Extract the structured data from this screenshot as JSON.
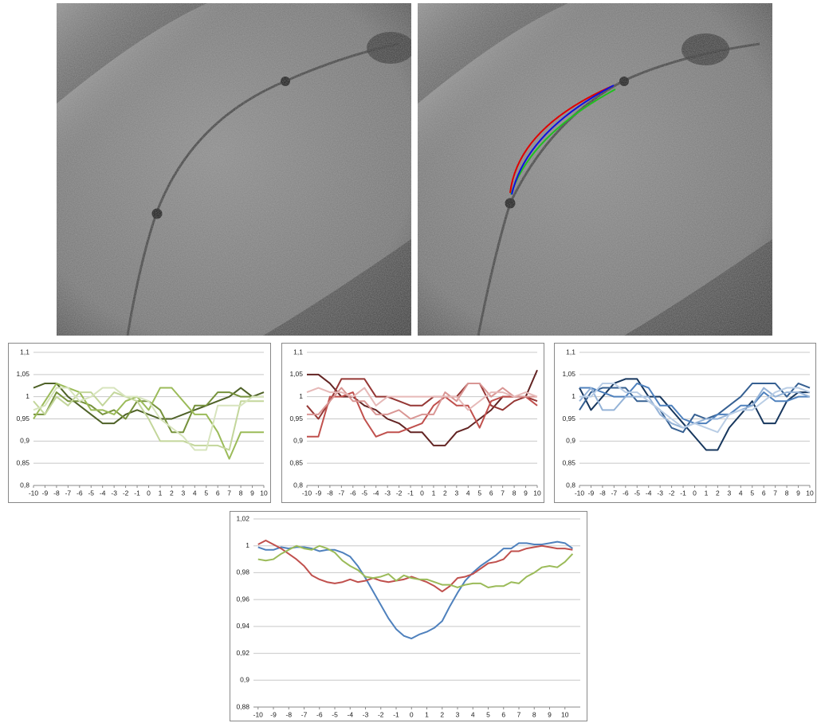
{
  "chart_data": [
    {
      "type": "line",
      "x": [
        -10,
        -9,
        -8,
        -7,
        -6,
        -5,
        -4,
        -3,
        -2,
        -1,
        0,
        1,
        2,
        3,
        4,
        5,
        6,
        7,
        8,
        9,
        10
      ],
      "xlim": [
        -10,
        10
      ],
      "xticks": [
        -10,
        -9,
        -8,
        -7,
        -6,
        -5,
        -4,
        -3,
        -2,
        -1,
        0,
        1,
        2,
        3,
        4,
        5,
        6,
        7,
        8,
        9,
        10
      ],
      "ylim": [
        0.8,
        1.1
      ],
      "yticks": [
        {
          "value": 0.8,
          "label": "0,8"
        },
        {
          "value": 0.85,
          "label": "0,85"
        },
        {
          "value": 0.9,
          "label": "0,9"
        },
        {
          "value": 0.95,
          "label": "0,95"
        },
        1,
        {
          "value": 1.05,
          "label": "1,05"
        },
        {
          "value": 1.1,
          "label": "1,1"
        }
      ],
      "grid": true,
      "series": [
        {
          "color": "#4f6228",
          "values": [
            1.02,
            1.03,
            1.03,
            1.0,
            0.98,
            0.96,
            0.94,
            0.94,
            0.96,
            0.97,
            0.96,
            0.95,
            0.95,
            0.96,
            0.97,
            0.98,
            0.99,
            1.0,
            1.02,
            1.0,
            1.01
          ]
        },
        {
          "color": "#76923c",
          "values": [
            0.96,
            0.96,
            1.01,
            0.99,
            0.99,
            0.98,
            0.96,
            0.97,
            0.95,
            0.99,
            0.99,
            0.97,
            0.92,
            0.92,
            0.98,
            0.98,
            1.01,
            1.01,
            1.0,
            1.0,
            1.0
          ]
        },
        {
          "color": "#9bbb59",
          "values": [
            0.95,
            0.99,
            1.03,
            1.02,
            1.01,
            0.97,
            0.97,
            0.96,
            0.99,
            1.0,
            0.97,
            1.02,
            1.02,
            0.99,
            0.96,
            0.96,
            0.92,
            0.86,
            0.92,
            0.92,
            0.92
          ]
        },
        {
          "color": "#c3d69b",
          "values": [
            0.99,
            0.96,
            1.0,
            0.98,
            1.01,
            1.01,
            0.98,
            1.01,
            1.0,
            0.99,
            0.95,
            0.9,
            0.9,
            0.9,
            0.89,
            0.89,
            0.89,
            0.88,
            0.99,
            0.99,
            0.99
          ]
        },
        {
          "color": "#d7e4bd",
          "values": [
            0.97,
            0.98,
            1.02,
            1.02,
            0.99,
            1.0,
            1.02,
            1.02,
            1.0,
            1.0,
            0.99,
            0.95,
            0.93,
            0.91,
            0.88,
            0.88,
            0.98,
            0.98,
            0.98,
            1.0,
            1.0
          ]
        }
      ]
    },
    {
      "type": "line",
      "x": [
        -10,
        -9,
        -8,
        -7,
        -6,
        -5,
        -4,
        -3,
        -2,
        -1,
        0,
        1,
        2,
        3,
        4,
        5,
        6,
        7,
        8,
        9,
        10
      ],
      "xlim": [
        -10,
        10
      ],
      "xticks": [
        -10,
        -9,
        -8,
        -7,
        -6,
        -5,
        -4,
        -3,
        -2,
        -1,
        0,
        1,
        2,
        3,
        4,
        5,
        6,
        7,
        8,
        9,
        10
      ],
      "ylim": [
        0.8,
        1.1
      ],
      "yticks": [
        {
          "value": 0.8,
          "label": "0,8"
        },
        {
          "value": 0.85,
          "label": "0,85"
        },
        {
          "value": 0.9,
          "label": "0,9"
        },
        {
          "value": 0.95,
          "label": "0,95"
        },
        1,
        {
          "value": 1.05,
          "label": "1,05"
        },
        {
          "value": 1.1,
          "label": "1,1"
        }
      ],
      "grid": true,
      "series": [
        {
          "color": "#632423",
          "values": [
            1.05,
            1.05,
            1.03,
            1.0,
            1.0,
            0.98,
            0.97,
            0.95,
            0.94,
            0.92,
            0.92,
            0.89,
            0.89,
            0.92,
            0.93,
            0.95,
            0.97,
            1.0,
            1.0,
            1.0,
            1.06
          ]
        },
        {
          "color": "#953735",
          "values": [
            0.98,
            0.95,
            0.99,
            1.04,
            1.04,
            1.04,
            1.0,
            1.0,
            0.99,
            0.98,
            0.98,
            1.0,
            1.0,
            1.0,
            1.03,
            1.03,
            0.98,
            0.97,
            0.99,
            1.0,
            0.99
          ]
        },
        {
          "color": "#c0504d",
          "values": [
            0.91,
            0.91,
            1.0,
            1.0,
            1.01,
            0.95,
            0.91,
            0.92,
            0.92,
            0.93,
            0.94,
            0.98,
            1.0,
            0.98,
            0.98,
            0.93,
            0.99,
            1.0,
            1.0,
            1.0,
            0.98
          ]
        },
        {
          "color": "#d99694",
          "values": [
            0.96,
            0.96,
            0.99,
            1.02,
            0.99,
            0.99,
            0.96,
            0.96,
            0.97,
            0.95,
            0.96,
            0.96,
            1.01,
            0.99,
            1.03,
            1.03,
            1.0,
            1.02,
            1.0,
            1.0,
            1.0
          ]
        },
        {
          "color": "#e6b9b8",
          "values": [
            1.01,
            1.02,
            1.01,
            1.01,
            1.0,
            1.02,
            0.98,
            1.0,
            1.0,
            1.0,
            1.0,
            1.0,
            1.0,
            1.0,
            0.97,
            0.99,
            1.01,
            1.01,
            1.0,
            1.01,
            1.0
          ]
        }
      ]
    },
    {
      "type": "line",
      "x": [
        -10,
        -9,
        -8,
        -7,
        -6,
        -5,
        -4,
        -3,
        -2,
        -1,
        0,
        1,
        2,
        3,
        4,
        5,
        6,
        7,
        8,
        9,
        10
      ],
      "xlim": [
        -10,
        10
      ],
      "xticks": [
        -10,
        -9,
        -8,
        -7,
        -6,
        -5,
        -4,
        -3,
        -2,
        -1,
        0,
        1,
        2,
        3,
        4,
        5,
        6,
        7,
        8,
        9,
        10
      ],
      "ylim": [
        0.8,
        1.1
      ],
      "yticks": [
        {
          "value": 0.8,
          "label": "0,8"
        },
        {
          "value": 0.85,
          "label": "0,85"
        },
        {
          "value": 0.9,
          "label": "0,9"
        },
        {
          "value": 0.95,
          "label": "0,95"
        },
        1,
        {
          "value": 1.05,
          "label": "1,05"
        },
        {
          "value": 1.1,
          "label": "1,1"
        }
      ],
      "grid": true,
      "series": [
        {
          "color": "#17375e",
          "values": [
            1.02,
            0.97,
            1.0,
            1.03,
            1.04,
            1.04,
            1.0,
            1.0,
            0.97,
            0.94,
            0.91,
            0.88,
            0.88,
            0.93,
            0.96,
            0.99,
            0.94,
            0.94,
            0.99,
            1.01,
            1.01
          ]
        },
        {
          "color": "#366092",
          "values": [
            0.97,
            1.01,
            1.02,
            1.02,
            1.02,
            0.99,
            0.99,
            0.97,
            0.93,
            0.92,
            0.96,
            0.95,
            0.96,
            0.98,
            1.0,
            1.03,
            1.03,
            1.03,
            1.0,
            1.03,
            1.02
          ]
        },
        {
          "color": "#4f81bd",
          "values": [
            1.02,
            1.02,
            1.01,
            1.0,
            1.0,
            1.03,
            1.02,
            0.98,
            0.98,
            0.95,
            0.94,
            0.94,
            0.96,
            0.96,
            0.98,
            0.98,
            1.01,
            0.99,
            0.99,
            1.0,
            1.0
          ]
        },
        {
          "color": "#95b3d7",
          "values": [
            0.99,
            1.02,
            0.97,
            0.97,
            1.0,
            1.0,
            1.0,
            0.96,
            0.94,
            0.93,
            0.94,
            0.95,
            0.95,
            0.96,
            0.97,
            0.98,
            1.02,
            1.0,
            1.01,
            1.01,
            1.0
          ]
        },
        {
          "color": "#b9cde5",
          "values": [
            1.0,
            1.0,
            1.03,
            1.03,
            1.01,
            1.01,
            0.99,
            0.97,
            0.95,
            0.93,
            0.94,
            0.93,
            0.92,
            0.96,
            0.97,
            0.97,
            0.99,
            1.01,
            1.02,
            1.02,
            1.01
          ]
        }
      ]
    },
    {
      "type": "line",
      "x": [
        -10,
        -9.5,
        -9,
        -8.5,
        -8,
        -7.5,
        -7,
        -6.5,
        -6,
        -5.5,
        -5,
        -4.5,
        -4,
        -3.5,
        -3,
        -2.5,
        -2,
        -1.5,
        -1,
        -0.5,
        0,
        0.5,
        1,
        1.5,
        2,
        2.5,
        3,
        3.5,
        4,
        4.5,
        5,
        5.5,
        6,
        6.5,
        7,
        7.5,
        8,
        8.5,
        9,
        9.5,
        10,
        10.5
      ],
      "xlim": [
        -10.3,
        11
      ],
      "xticks": [
        -10,
        -9,
        -8,
        -7,
        -6,
        -5,
        -4,
        -3,
        -2,
        -1,
        0,
        1,
        2,
        3,
        4,
        5,
        6,
        7,
        8,
        9,
        10
      ],
      "ylim": [
        0.88,
        1.02
      ],
      "yticks": [
        {
          "value": 0.88,
          "label": "0,88"
        },
        {
          "value": 0.9,
          "label": "0,9"
        },
        {
          "value": 0.92,
          "label": "0,92"
        },
        {
          "value": 0.94,
          "label": "0,94"
        },
        {
          "value": 0.96,
          "label": "0,96"
        },
        {
          "value": 0.98,
          "label": "0,98"
        },
        1,
        {
          "value": 1.02,
          "label": "1,02"
        }
      ],
      "grid": true,
      "series": [
        {
          "color": "#4f81bd",
          "values": [
            0.999,
            0.997,
            0.997,
            0.999,
            0.998,
            0.999,
            0.999,
            0.998,
            0.996,
            0.997,
            0.997,
            0.995,
            0.992,
            0.985,
            0.976,
            0.966,
            0.956,
            0.946,
            0.938,
            0.933,
            0.931,
            0.934,
            0.936,
            0.939,
            0.944,
            0.955,
            0.965,
            0.974,
            0.98,
            0.985,
            0.989,
            0.993,
            0.998,
            0.998,
            1.002,
            1.002,
            1.001,
            1.001,
            1.002,
            1.003,
            1.002,
            0.998
          ]
        },
        {
          "color": "#c0504d",
          "values": [
            1.001,
            1.004,
            1.001,
            0.998,
            0.994,
            0.99,
            0.985,
            0.978,
            0.975,
            0.973,
            0.972,
            0.973,
            0.975,
            0.973,
            0.974,
            0.976,
            0.974,
            0.973,
            0.974,
            0.975,
            0.977,
            0.975,
            0.973,
            0.97,
            0.966,
            0.97,
            0.976,
            0.977,
            0.979,
            0.983,
            0.987,
            0.988,
            0.99,
            0.996,
            0.996,
            0.998,
            0.999,
            1.0,
            0.999,
            0.998,
            0.998,
            0.997
          ]
        },
        {
          "color": "#9bbb59",
          "values": [
            0.99,
            0.989,
            0.99,
            0.994,
            0.997,
            1.0,
            0.998,
            0.997,
            1.0,
            0.998,
            0.995,
            0.989,
            0.985,
            0.982,
            0.977,
            0.976,
            0.977,
            0.979,
            0.974,
            0.978,
            0.976,
            0.975,
            0.975,
            0.973,
            0.971,
            0.971,
            0.969,
            0.971,
            0.972,
            0.972,
            0.969,
            0.97,
            0.97,
            0.973,
            0.972,
            0.977,
            0.98,
            0.984,
            0.985,
            0.984,
            0.988,
            0.994
          ]
        }
      ]
    }
  ]
}
